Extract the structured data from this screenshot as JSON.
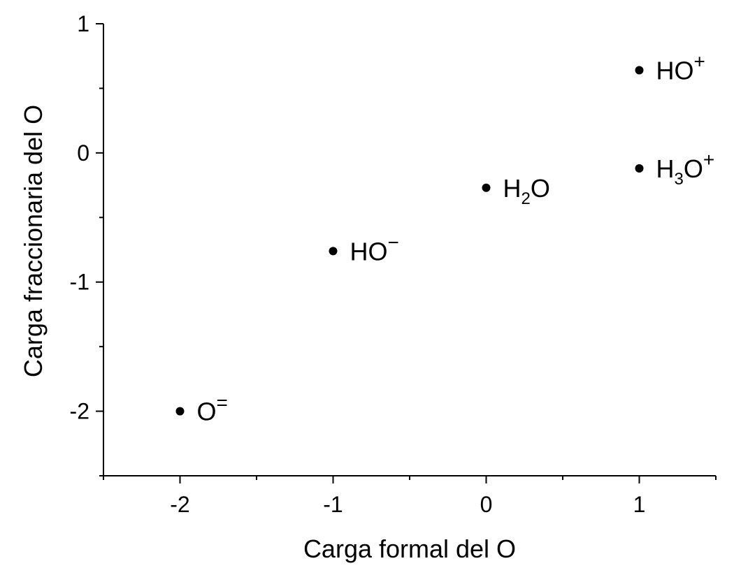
{
  "chart_data": {
    "type": "scatter",
    "xlabel": "Carga formal del O",
    "ylabel": "Carga fraccionaria del O",
    "xlim": [
      -2.5,
      1.5
    ],
    "ylim": [
      -2.5,
      1.0
    ],
    "x_ticks": [
      -2,
      -1,
      0,
      1
    ],
    "x_tick_labels": [
      "-2",
      "-1",
      "0",
      "1"
    ],
    "x_minor_ticks": [
      -2.5,
      -1.5,
      -0.5,
      0.5,
      1.5
    ],
    "y_ticks": [
      -2,
      -1,
      0,
      1
    ],
    "y_tick_labels": [
      "-2",
      "-1",
      "0",
      "1"
    ],
    "y_minor_ticks": [
      -2.5,
      -1.5,
      -0.5,
      0.5
    ],
    "grid": false,
    "legend": "none",
    "marker_color": "#000000",
    "points": [
      {
        "x": -2,
        "y": -2.0,
        "label": {
          "base": "O",
          "sub": "",
          "mid": "",
          "sup": "="
        }
      },
      {
        "x": -1,
        "y": -0.76,
        "label": {
          "base": "HO",
          "sub": "",
          "mid": "",
          "sup": "−"
        }
      },
      {
        "x": 0,
        "y": -0.27,
        "label": {
          "base": "H",
          "sub": "2",
          "mid": "O",
          "sup": ""
        }
      },
      {
        "x": 1,
        "y": -0.12,
        "label": {
          "base": "H",
          "sub": "3",
          "mid": "O",
          "sup": "+"
        }
      },
      {
        "x": 1,
        "y": 0.64,
        "label": {
          "base": "HO",
          "sub": "",
          "mid": "",
          "sup": "+"
        }
      }
    ]
  }
}
